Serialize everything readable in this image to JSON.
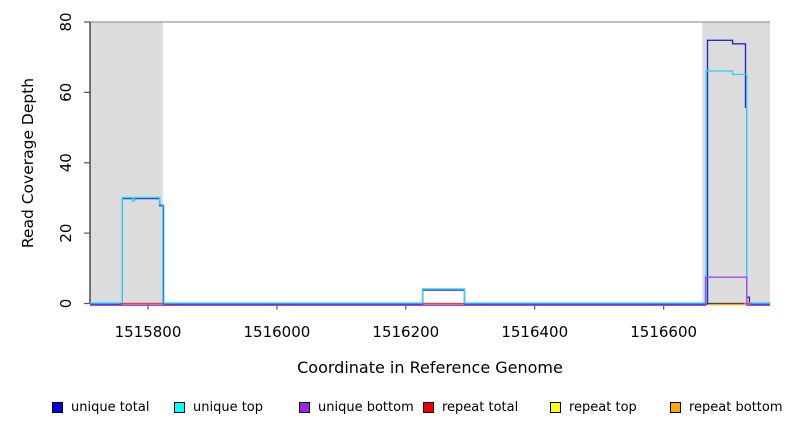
{
  "chart_data": {
    "type": "line",
    "subtype": "step-coverage",
    "title": "",
    "xlabel": "Coordinate in Reference Genome",
    "ylabel": "Read Coverage Depth",
    "xlim": [
      1515710,
      1516765
    ],
    "ylim": [
      0,
      80
    ],
    "x_ticks": [
      1515800,
      1516000,
      1516200,
      1516400,
      1516600
    ],
    "y_ticks": [
      0,
      20,
      40,
      60,
      80
    ],
    "grid": false,
    "reference_line_y": 80,
    "reference_line_color": "#9a9a9a",
    "shaded_regions": [
      {
        "x0": 1515710,
        "x1": 1515823,
        "color": "#dcdcdc"
      },
      {
        "x0": 1516660,
        "x1": 1516765,
        "color": "#dcdcdc"
      }
    ],
    "series": [
      {
        "name": "unique_total",
        "label": "unique total",
        "legend_color": "#0000e0",
        "line_color": "#2929d2",
        "segments": [
          [
            [
              1515710,
              0
            ],
            [
              1515760,
              0
            ],
            [
              1515760,
              30
            ],
            [
              1515818,
              30
            ],
            [
              1515818,
              28
            ],
            [
              1515824,
              28
            ],
            [
              1515824,
              0
            ],
            [
              1516226,
              0
            ],
            [
              1516226,
              4
            ],
            [
              1516291,
              4
            ],
            [
              1516291,
              0
            ],
            [
              1516668,
              0
            ],
            [
              1516668,
              75
            ],
            [
              1516707,
              75
            ],
            [
              1516707,
              74
            ],
            [
              1516727,
              74
            ],
            [
              1516727,
              56
            ],
            [
              1516729,
              56
            ],
            [
              1516729,
              2
            ],
            [
              1516733,
              2
            ],
            [
              1516733,
              0
            ],
            [
              1516765,
              0
            ]
          ]
        ]
      },
      {
        "name": "unique_top",
        "label": "unique top",
        "legend_color": "#00ffff",
        "line_color": "#30d5f0",
        "segments": [
          [
            [
              1515710,
              0
            ],
            [
              1515760,
              0
            ],
            [
              1515760,
              30
            ],
            [
              1515776,
              30
            ],
            [
              1515776,
              29
            ],
            [
              1515779,
              29
            ],
            [
              1515779,
              30
            ],
            [
              1515818,
              30
            ],
            [
              1515818,
              28
            ],
            [
              1515823,
              28
            ],
            [
              1515823,
              0
            ],
            [
              1516226,
              0
            ],
            [
              1516226,
              4
            ],
            [
              1516291,
              4
            ],
            [
              1516291,
              0
            ],
            [
              1516666,
              0
            ],
            [
              1516666,
              66
            ],
            [
              1516707,
              66
            ],
            [
              1516707,
              65
            ],
            [
              1516729,
              65
            ],
            [
              1516729,
              0
            ],
            [
              1516765,
              0
            ]
          ]
        ]
      },
      {
        "name": "unique_bottom",
        "label": "unique bottom",
        "legend_color": "#a020f0",
        "line_color": "#a24de0",
        "segments": [
          [
            [
              1515710,
              0
            ],
            [
              1516665,
              0
            ],
            [
              1516665,
              8
            ],
            [
              1516729,
              8
            ],
            [
              1516729,
              0
            ],
            [
              1516765,
              0
            ]
          ]
        ]
      },
      {
        "name": "repeat_total",
        "label": "repeat total",
        "legend_color": "#ee0000",
        "line_color": "#ec4040",
        "segments": [
          [
            [
              1515757,
              0
            ],
            [
              1515825,
              0
            ]
          ],
          [
            [
              1516226,
              0
            ],
            [
              1516291,
              0
            ]
          ],
          [
            [
              1516724,
              0
            ],
            [
              1516736,
              0
            ]
          ]
        ]
      },
      {
        "name": "repeat_top",
        "label": "repeat top",
        "legend_color": "#ffff00",
        "line_color": "#f5e400",
        "segments": []
      },
      {
        "name": "repeat_bottom",
        "label": "repeat bottom",
        "legend_color": "#ffa500",
        "line_color": "#ffa020",
        "segments": [
          [
            [
              1516670,
              0
            ],
            [
              1516727,
              0
            ]
          ]
        ]
      }
    ],
    "legend_position": "bottom"
  }
}
